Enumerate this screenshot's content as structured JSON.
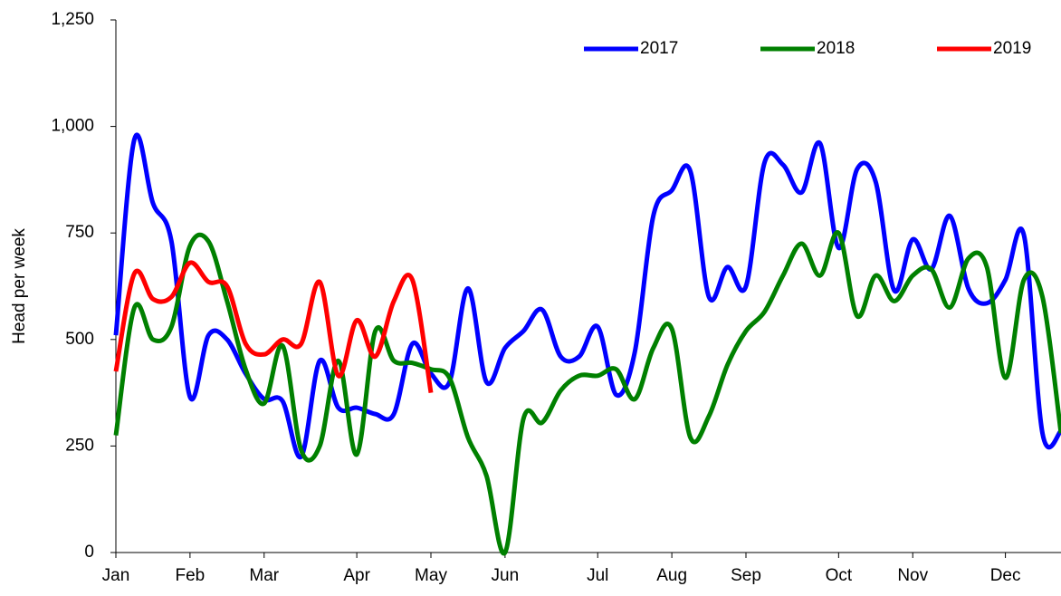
{
  "chart_data": {
    "type": "line",
    "y_label": "Head per week",
    "categories": [
      "Jan",
      null,
      null,
      null,
      "Feb",
      null,
      null,
      null,
      "Mar",
      null,
      null,
      null,
      null,
      "Apr",
      null,
      null,
      null,
      "May",
      null,
      null,
      null,
      "Jun",
      null,
      null,
      null,
      null,
      "Jul",
      null,
      null,
      null,
      "Aug",
      null,
      null,
      null,
      "Sep",
      null,
      null,
      null,
      null,
      "Oct",
      null,
      null,
      null,
      "Nov",
      null,
      null,
      null,
      null,
      "Dec",
      null,
      null,
      null
    ],
    "series": [
      {
        "name": "2017",
        "color": "#0000ff",
        "values": [
          510,
          970,
          820,
          730,
          365,
          510,
          500,
          420,
          360,
          355,
          225,
          450,
          340,
          340,
          325,
          325,
          490,
          420,
          400,
          620,
          400,
          480,
          520,
          570,
          460,
          460,
          530,
          370,
          470,
          790,
          850,
          895,
          600,
          670,
          625,
          915,
          910,
          845,
          960,
          715,
          900,
          870,
          615,
          735,
          665,
          790,
          620,
          585,
          640,
          745,
          280,
          285
        ]
      },
      {
        "name": "2018",
        "color": "#008000",
        "values": [
          275,
          575,
          500,
          530,
          720,
          730,
          590,
          430,
          350,
          485,
          240,
          250,
          450,
          230,
          520,
          450,
          445,
          430,
          410,
          270,
          180,
          0,
          315,
          305,
          380,
          415,
          415,
          430,
          360,
          480,
          525,
          270,
          320,
          440,
          520,
          565,
          650,
          725,
          650,
          750,
          555,
          650,
          590,
          650,
          665,
          575,
          690,
          670,
          410,
          640,
          600,
          280
        ]
      },
      {
        "name": "2019",
        "color": "#ff0000",
        "values": [
          425,
          655,
          595,
          600,
          680,
          635,
          625,
          490,
          465,
          500,
          490,
          635,
          415,
          545,
          460,
          590,
          640,
          375,
          null,
          null,
          null,
          null,
          null,
          null,
          null,
          null,
          null,
          null,
          null,
          null,
          null,
          null,
          null,
          null,
          null,
          null,
          null,
          null,
          null,
          null,
          null,
          null,
          null,
          null,
          null,
          null,
          null,
          null,
          null,
          null,
          null,
          null
        ]
      }
    ],
    "ylim": [
      0,
      1250
    ],
    "yticks": [
      0,
      250,
      500,
      750,
      {
        "value": 1000,
        "label": "1,000"
      },
      {
        "value": 1250,
        "label": "1,250"
      }
    ],
    "legend": "top-right"
  }
}
